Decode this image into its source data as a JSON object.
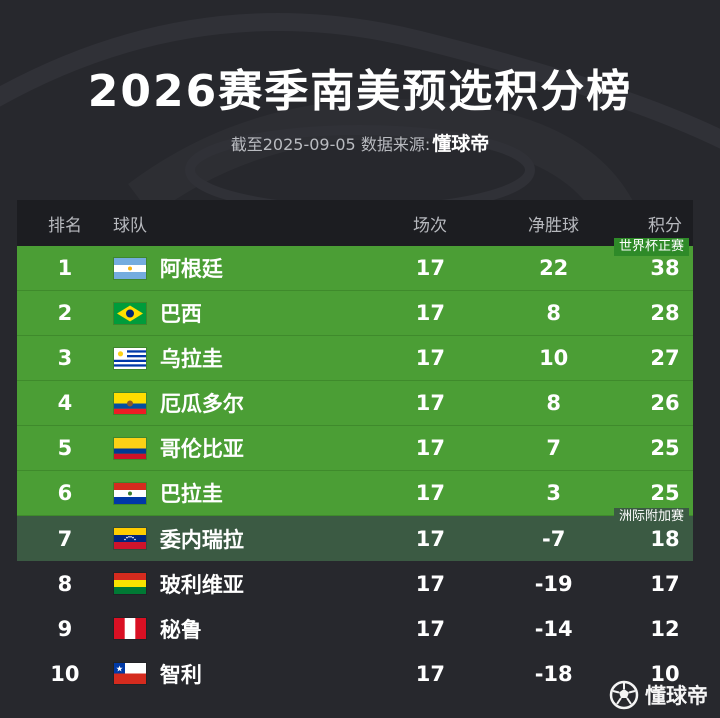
{
  "title": "2026赛季南美预选积分榜",
  "subtitle": {
    "prefix": "截至2025-09-05 数据来源:",
    "brand": "懂球帝"
  },
  "headers": {
    "rank": "排名",
    "team": "球队",
    "played": "场次",
    "goal_diff": "净胜球",
    "points": "积分"
  },
  "zones": {
    "direct": "世界杯正赛",
    "playoff": "洲际附加赛"
  },
  "rows": [
    {
      "rank": "1",
      "team": "阿根廷",
      "played": "17",
      "gd": "22",
      "pts": "38",
      "zone": "direct",
      "flag": "argentina-flag"
    },
    {
      "rank": "2",
      "team": "巴西",
      "played": "17",
      "gd": "8",
      "pts": "28",
      "zone": "direct",
      "flag": "brazil-flag"
    },
    {
      "rank": "3",
      "team": "乌拉圭",
      "played": "17",
      "gd": "10",
      "pts": "27",
      "zone": "direct",
      "flag": "uruguay-flag"
    },
    {
      "rank": "4",
      "team": "厄瓜多尔",
      "played": "17",
      "gd": "8",
      "pts": "26",
      "zone": "direct",
      "flag": "ecuador-flag"
    },
    {
      "rank": "5",
      "team": "哥伦比亚",
      "played": "17",
      "gd": "7",
      "pts": "25",
      "zone": "direct",
      "flag": "colombia-flag"
    },
    {
      "rank": "6",
      "team": "巴拉圭",
      "played": "17",
      "gd": "3",
      "pts": "25",
      "zone": "direct",
      "flag": "paraguay-flag"
    },
    {
      "rank": "7",
      "team": "委内瑞拉",
      "played": "17",
      "gd": "-7",
      "pts": "18",
      "zone": "playoff",
      "flag": "venezuela-flag"
    },
    {
      "rank": "8",
      "team": "玻利维亚",
      "played": "17",
      "gd": "-19",
      "pts": "17",
      "zone": "none",
      "flag": "bolivia-flag"
    },
    {
      "rank": "9",
      "team": "秘鲁",
      "played": "17",
      "gd": "-14",
      "pts": "12",
      "zone": "none",
      "flag": "peru-flag"
    },
    {
      "rank": "10",
      "team": "智利",
      "played": "17",
      "gd": "-18",
      "pts": "10",
      "zone": "none",
      "flag": "chile-flag"
    }
  ],
  "colors": {
    "background": "#27282d",
    "direct_zone": "#4b9e35",
    "playoff_zone": "#3b5a43",
    "header_bg": "#1c1d21"
  },
  "watermark": {
    "text": "懂球帝",
    "icon": "soccer-ball-icon"
  }
}
